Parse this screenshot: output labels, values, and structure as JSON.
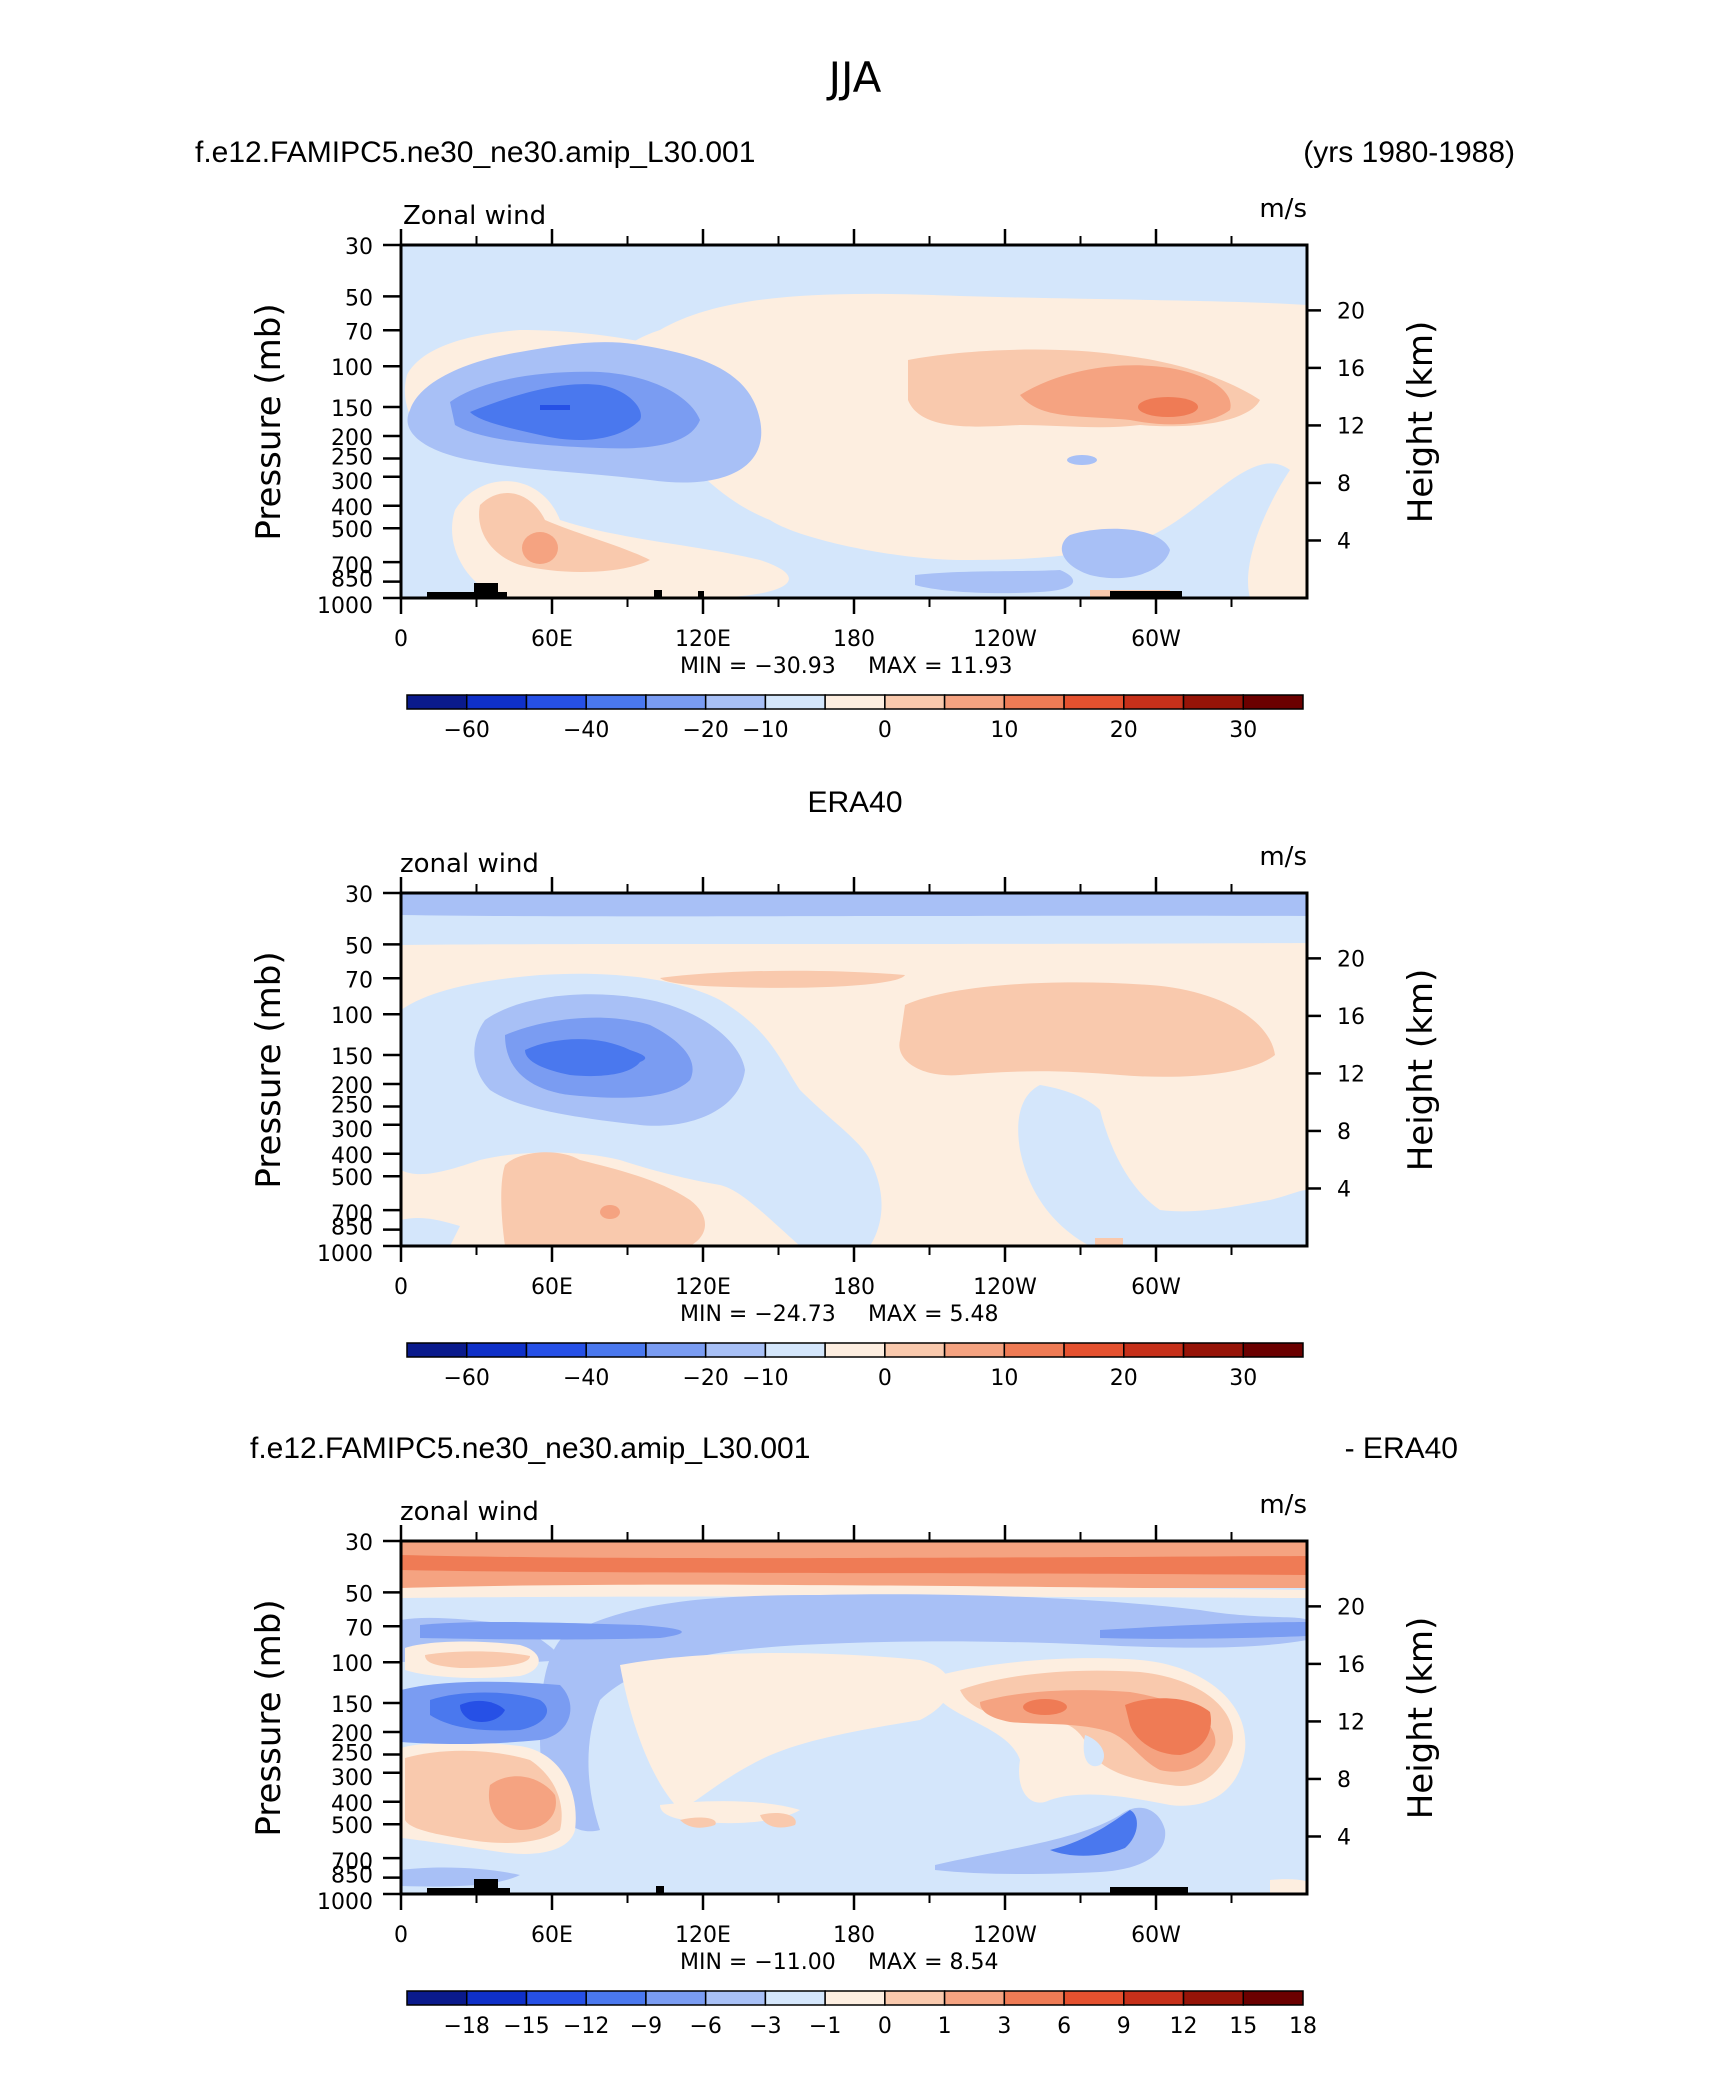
{
  "figure_title": "JJA",
  "header": {
    "case_name": "f.e12.FAMIPC5.ne30_ne30.amip_L30.001",
    "years": "(yrs 1980-1988)"
  },
  "panel2_title": "ERA40",
  "panel3_header": {
    "case_name": "f.e12.FAMIPC5.ne30_ne30.amip_L30.001",
    "minus": "- ERA40"
  },
  "colors": {
    "levels": [
      "#0a1a8c",
      "#0f30c8",
      "#2650e6",
      "#4a78ee",
      "#7a9cf2",
      "#a8c0f6",
      "#d4e6fb",
      "#fdeee0",
      "#f9c9ad",
      "#f5a381",
      "#ef7b55",
      "#e5512f",
      "#c6301a",
      "#961408",
      "#6b0000"
    ]
  },
  "chart_data": [
    {
      "type": "contour",
      "variable": "Zonal wind",
      "units": "m/s",
      "ylabel": "Pressure (mb)",
      "ylabel_right": "Height (km)",
      "y_ticks": [
        "30",
        "50",
        "70",
        "100",
        "150",
        "200",
        "250",
        "300",
        "400",
        "500",
        "700",
        "850",
        "1000"
      ],
      "y_right_ticks": [
        "20",
        "16",
        "12",
        "8",
        "4"
      ],
      "x_ticks": [
        "0",
        "60E",
        "120E",
        "180",
        "120W",
        "60W"
      ],
      "min_label": "MIN = −30.93",
      "max_label": "MAX = 11.93",
      "min": -30.93,
      "max": 11.93,
      "colorbar_labels": [
        "−60",
        "−40",
        "−20",
        "−10",
        "0",
        "10",
        "20",
        "30"
      ]
    },
    {
      "type": "contour",
      "variable": "zonal wind",
      "units": "m/s",
      "ylabel": "Pressure (mb)",
      "ylabel_right": "Height (km)",
      "y_ticks": [
        "30",
        "50",
        "70",
        "100",
        "150",
        "200",
        "250",
        "300",
        "400",
        "500",
        "700",
        "850",
        "1000"
      ],
      "y_right_ticks": [
        "20",
        "16",
        "12",
        "8",
        "4"
      ],
      "x_ticks": [
        "0",
        "60E",
        "120E",
        "180",
        "120W",
        "60W"
      ],
      "min_label": "MIN = −24.73",
      "max_label": "MAX = 5.48",
      "min": -24.73,
      "max": 5.48,
      "colorbar_labels": [
        "−60",
        "−40",
        "−20",
        "−10",
        "0",
        "10",
        "20",
        "30"
      ]
    },
    {
      "type": "contour",
      "variable": "zonal wind",
      "units": "m/s",
      "ylabel": "Pressure (mb)",
      "ylabel_right": "Height (km)",
      "y_ticks": [
        "30",
        "50",
        "70",
        "100",
        "150",
        "200",
        "250",
        "300",
        "400",
        "500",
        "700",
        "850",
        "1000"
      ],
      "y_right_ticks": [
        "20",
        "16",
        "12",
        "8",
        "4"
      ],
      "x_ticks": [
        "0",
        "60E",
        "120E",
        "180",
        "120W",
        "60W"
      ],
      "min_label": "MIN = −11.00",
      "max_label": "MAX = 8.54",
      "min": -11.0,
      "max": 8.54,
      "colorbar_labels": [
        "−18",
        "−15",
        "−12",
        "−9",
        "−6",
        "−3",
        "−1",
        "0",
        "1",
        "3",
        "6",
        "9",
        "12",
        "15",
        "18"
      ]
    }
  ]
}
